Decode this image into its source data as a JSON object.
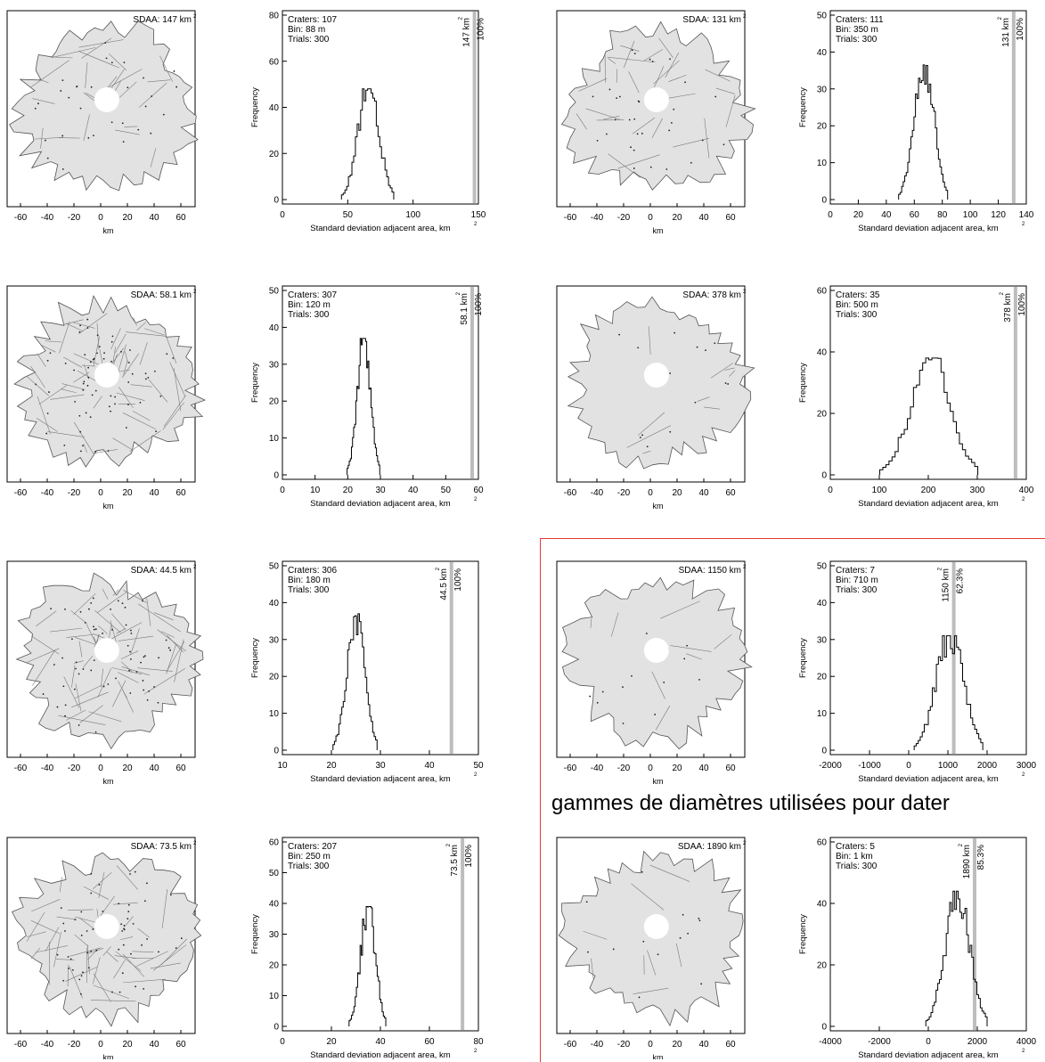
{
  "caption": "gammes de diamètres utilisées pour dater",
  "colors": {
    "highlight": "#e53935",
    "fill": "#e2e2e2",
    "observed_bar": "#bdbdbd",
    "edge": "#7a7a7a"
  },
  "chart_data": [
    {
      "type": "bar",
      "map_label": "SDAA: 147 km",
      "ylabel": "Frequency",
      "xlabel": "Standard deviation adjacent area, km",
      "stats": [
        "Craters: 107",
        "Bin: 88 m",
        "Trials: 300"
      ],
      "observed": {
        "value": 147,
        "label": "147 km",
        "pct": "100%"
      },
      "xlim": [
        0,
        150
      ],
      "ylim": [
        0,
        80
      ],
      "xticks": [
        0,
        50,
        100,
        150
      ],
      "yticks": [
        0,
        20,
        40,
        60,
        80
      ],
      "mean": 66,
      "sd": 8,
      "peak": 48,
      "bins": 30,
      "map_xticks": [
        "-60",
        "-40",
        "-20",
        "0",
        "20",
        "40",
        "60"
      ],
      "map_xlabel": "km"
    },
    {
      "type": "bar",
      "map_label": "SDAA: 131 km",
      "ylabel": "Frequency",
      "xlabel": "Standard deviation adjacent area, km",
      "stats": [
        "Craters: 111",
        "Bin: 350 m",
        "Trials: 300"
      ],
      "observed": {
        "value": 131,
        "label": "131 km",
        "pct": "100%"
      },
      "xlim": [
        0,
        140
      ],
      "ylim": [
        0,
        50
      ],
      "xticks": [
        0,
        20,
        40,
        60,
        80,
        100,
        120,
        140
      ],
      "yticks": [
        0,
        10,
        20,
        30,
        40,
        50
      ],
      "mean": 67,
      "sd": 7,
      "peak": 37,
      "bins": 32,
      "map_xticks": [
        "-60",
        "-40",
        "-20",
        "0",
        "20",
        "40",
        "60"
      ],
      "map_xlabel": "km"
    },
    {
      "type": "bar",
      "map_label": "SDAA: 58.1 km",
      "ylabel": "Frequency",
      "xlabel": "Standard deviation adjacent area, km",
      "stats": [
        "Craters: 307",
        "Bin: 120 m",
        "Trials: 300"
      ],
      "observed": {
        "value": 58.1,
        "label": "58.1 km",
        "pct": "100%"
      },
      "xlim": [
        0,
        60
      ],
      "ylim": [
        0,
        50
      ],
      "xticks": [
        0,
        10,
        20,
        30,
        40,
        50,
        60
      ],
      "yticks": [
        0,
        10,
        20,
        30,
        40,
        50
      ],
      "mean": 25,
      "sd": 2,
      "peak": 37,
      "bins": 30,
      "map_xticks": [
        "-60",
        "-40",
        "-20",
        "0",
        "20",
        "40",
        "60"
      ],
      "map_xlabel": "km"
    },
    {
      "type": "bar",
      "map_label": "SDAA: 378 km",
      "ylabel": "Frequency",
      "xlabel": "Standard deviation adjacent area, km",
      "stats": [
        "Craters: 35",
        "Bin: 500 m",
        "Trials: 300"
      ],
      "observed": {
        "value": 378,
        "label": "378 km",
        "pct": "100%"
      },
      "xlim": [
        0,
        400
      ],
      "ylim": [
        0,
        60
      ],
      "xticks": [
        0,
        100,
        200,
        300,
        400
      ],
      "yticks": [
        0,
        20,
        40,
        60
      ],
      "mean": 205,
      "sd": 40,
      "peak": 38,
      "bins": 32,
      "map_xticks": [
        "-60",
        "-40",
        "-20",
        "0",
        "20",
        "40",
        "60"
      ],
      "map_xlabel": "km"
    },
    {
      "type": "bar",
      "map_label": "SDAA: 44.5 km",
      "ylabel": "Frequency",
      "xlabel": "Standard deviation adjacent area, km",
      "stats": [
        "Craters: 306",
        "Bin: 180 m",
        "Trials: 300"
      ],
      "observed": {
        "value": 44.5,
        "label": "44.5 km",
        "pct": "100%"
      },
      "xlim": [
        10,
        50
      ],
      "ylim": [
        0,
        50
      ],
      "xticks": [
        10,
        20,
        30,
        40,
        50
      ],
      "yticks": [
        0,
        10,
        20,
        30,
        40,
        50
      ],
      "mean": 25,
      "sd": 1.8,
      "peak": 37,
      "bins": 30,
      "map_xticks": [
        "-60",
        "-40",
        "-20",
        "0",
        "20",
        "40",
        "60"
      ],
      "map_xlabel": "km"
    },
    {
      "type": "bar",
      "map_label": "SDAA: 1150 km",
      "ylabel": "Frequency",
      "xlabel": "Standard deviation adjacent area, km",
      "stats": [
        "Craters: 7",
        "Bin: 710 m",
        "Trials: 300"
      ],
      "observed": {
        "value": 1150,
        "label": "1150 km",
        "pct": "62.3%"
      },
      "xlim": [
        -2000,
        3000
      ],
      "ylim": [
        0,
        50
      ],
      "xticks": [
        -2000,
        -1000,
        0,
        1000,
        2000,
        3000
      ],
      "yticks": [
        0,
        10,
        20,
        30,
        40,
        50
      ],
      "mean": 1050,
      "sd": 350,
      "peak": 31,
      "bins": 34,
      "map_xticks": [
        "-60",
        "-40",
        "-20",
        "0",
        "20",
        "40",
        "60"
      ],
      "map_xlabel": "km"
    },
    {
      "type": "bar",
      "map_label": "SDAA: 73.5 km",
      "ylabel": "Frequency",
      "xlabel": "Standard deviation adjacent area, km",
      "stats": [
        "Craters: 207",
        "Bin: 250 m",
        "Trials: 300"
      ],
      "observed": {
        "value": 73.5,
        "label": "73.5 km",
        "pct": "100%"
      },
      "xlim": [
        0,
        80
      ],
      "ylim": [
        0,
        60
      ],
      "xticks": [
        0,
        20,
        40,
        60,
        80
      ],
      "yticks": [
        0,
        10,
        20,
        30,
        40,
        50,
        60
      ],
      "mean": 35,
      "sd": 3,
      "peak": 39,
      "bins": 30,
      "map_xticks": [
        "-60",
        "-40",
        "-20",
        "0",
        "20",
        "40",
        "60"
      ],
      "map_xlabel": "km"
    },
    {
      "type": "bar",
      "map_label": "SDAA: 1890 km",
      "ylabel": "Frequency",
      "xlabel": "Standard deviation adjacent area, km",
      "stats": [
        "Craters: 5",
        "Bin: 1 km",
        "Trials: 300"
      ],
      "observed": {
        "value": 1890,
        "label": "1890 km",
        "pct": "85.3%"
      },
      "xlim": [
        -4000,
        4000
      ],
      "ylim": [
        0,
        60
      ],
      "xticks": [
        -4000,
        -2000,
        0,
        2000,
        4000
      ],
      "yticks": [
        0,
        20,
        40,
        60
      ],
      "mean": 1200,
      "sd": 500,
      "peak": 44,
      "bins": 36,
      "map_xticks": [
        "-60",
        "-40",
        "-20",
        "0",
        "20",
        "40",
        "60"
      ],
      "map_xlabel": "km"
    }
  ]
}
